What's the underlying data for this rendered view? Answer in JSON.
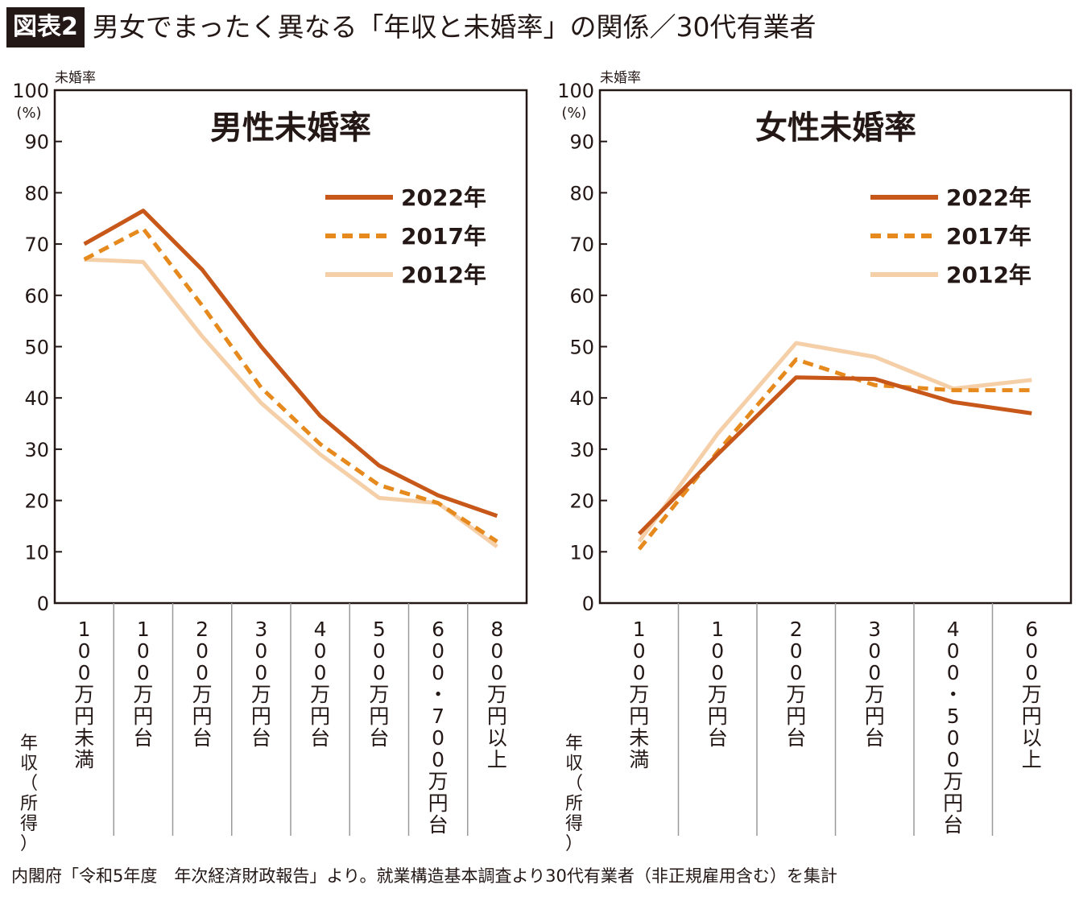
{
  "header": {
    "badge": "図表2",
    "title": "男女でまったく異なる「年収と未婚率」の関係／30代有業者"
  },
  "source_note": "内閣府「令和5年度　年次経済財政報告」より。就業構造基本調査より30代有業者（非正規雇用含む）を集計",
  "colors": {
    "2022年": "#c8581a",
    "2017年": "#e68a1e",
    "2012年": "#f5cfa8",
    "axis": "#231815"
  },
  "chart_data": [
    {
      "type": "line",
      "title": "男性未婚率",
      "ylabel": "未婚率",
      "y_unit": "(%)",
      "xlabel": "年収（所得）",
      "ylim": [
        0,
        100
      ],
      "yticks": [
        0,
        10,
        20,
        30,
        40,
        50,
        60,
        70,
        80,
        90,
        100
      ],
      "legend_position": "top-right",
      "categories": [
        "100万円未満",
        "100万円台",
        "200万円台",
        "300万円台",
        "400万円台",
        "500万円台",
        "600・700万円台",
        "800万円以上"
      ],
      "series": [
        {
          "name": "2022年",
          "style": "solid",
          "values": [
            70,
            76.5,
            65,
            50,
            36.5,
            26.8,
            21,
            17
          ]
        },
        {
          "name": "2017年",
          "style": "dashed",
          "values": [
            67,
            73,
            58,
            42,
            31,
            23,
            19.5,
            12
          ]
        },
        {
          "name": "2012年",
          "style": "solid",
          "values": [
            67,
            66.5,
            52,
            39,
            29,
            20.5,
            19.5,
            11
          ]
        }
      ]
    },
    {
      "type": "line",
      "title": "女性未婚率",
      "ylabel": "未婚率",
      "y_unit": "(%)",
      "xlabel": "年収（所得）",
      "ylim": [
        0,
        100
      ],
      "yticks": [
        0,
        10,
        20,
        30,
        40,
        50,
        60,
        70,
        80,
        90,
        100
      ],
      "legend_position": "top-right",
      "categories": [
        "100万円未満",
        "100万円台",
        "200万円台",
        "300万円台",
        "400・500万円台",
        "600万円以上"
      ],
      "series": [
        {
          "name": "2022年",
          "style": "solid",
          "values": [
            13.5,
            29,
            44,
            43.7,
            39.2,
            37
          ]
        },
        {
          "name": "2017年",
          "style": "dashed",
          "values": [
            10.5,
            29.5,
            47.5,
            42.5,
            41.5,
            41.5
          ]
        },
        {
          "name": "2012年",
          "style": "solid",
          "values": [
            12,
            33,
            50.7,
            48,
            41.8,
            43.5
          ]
        }
      ]
    }
  ]
}
